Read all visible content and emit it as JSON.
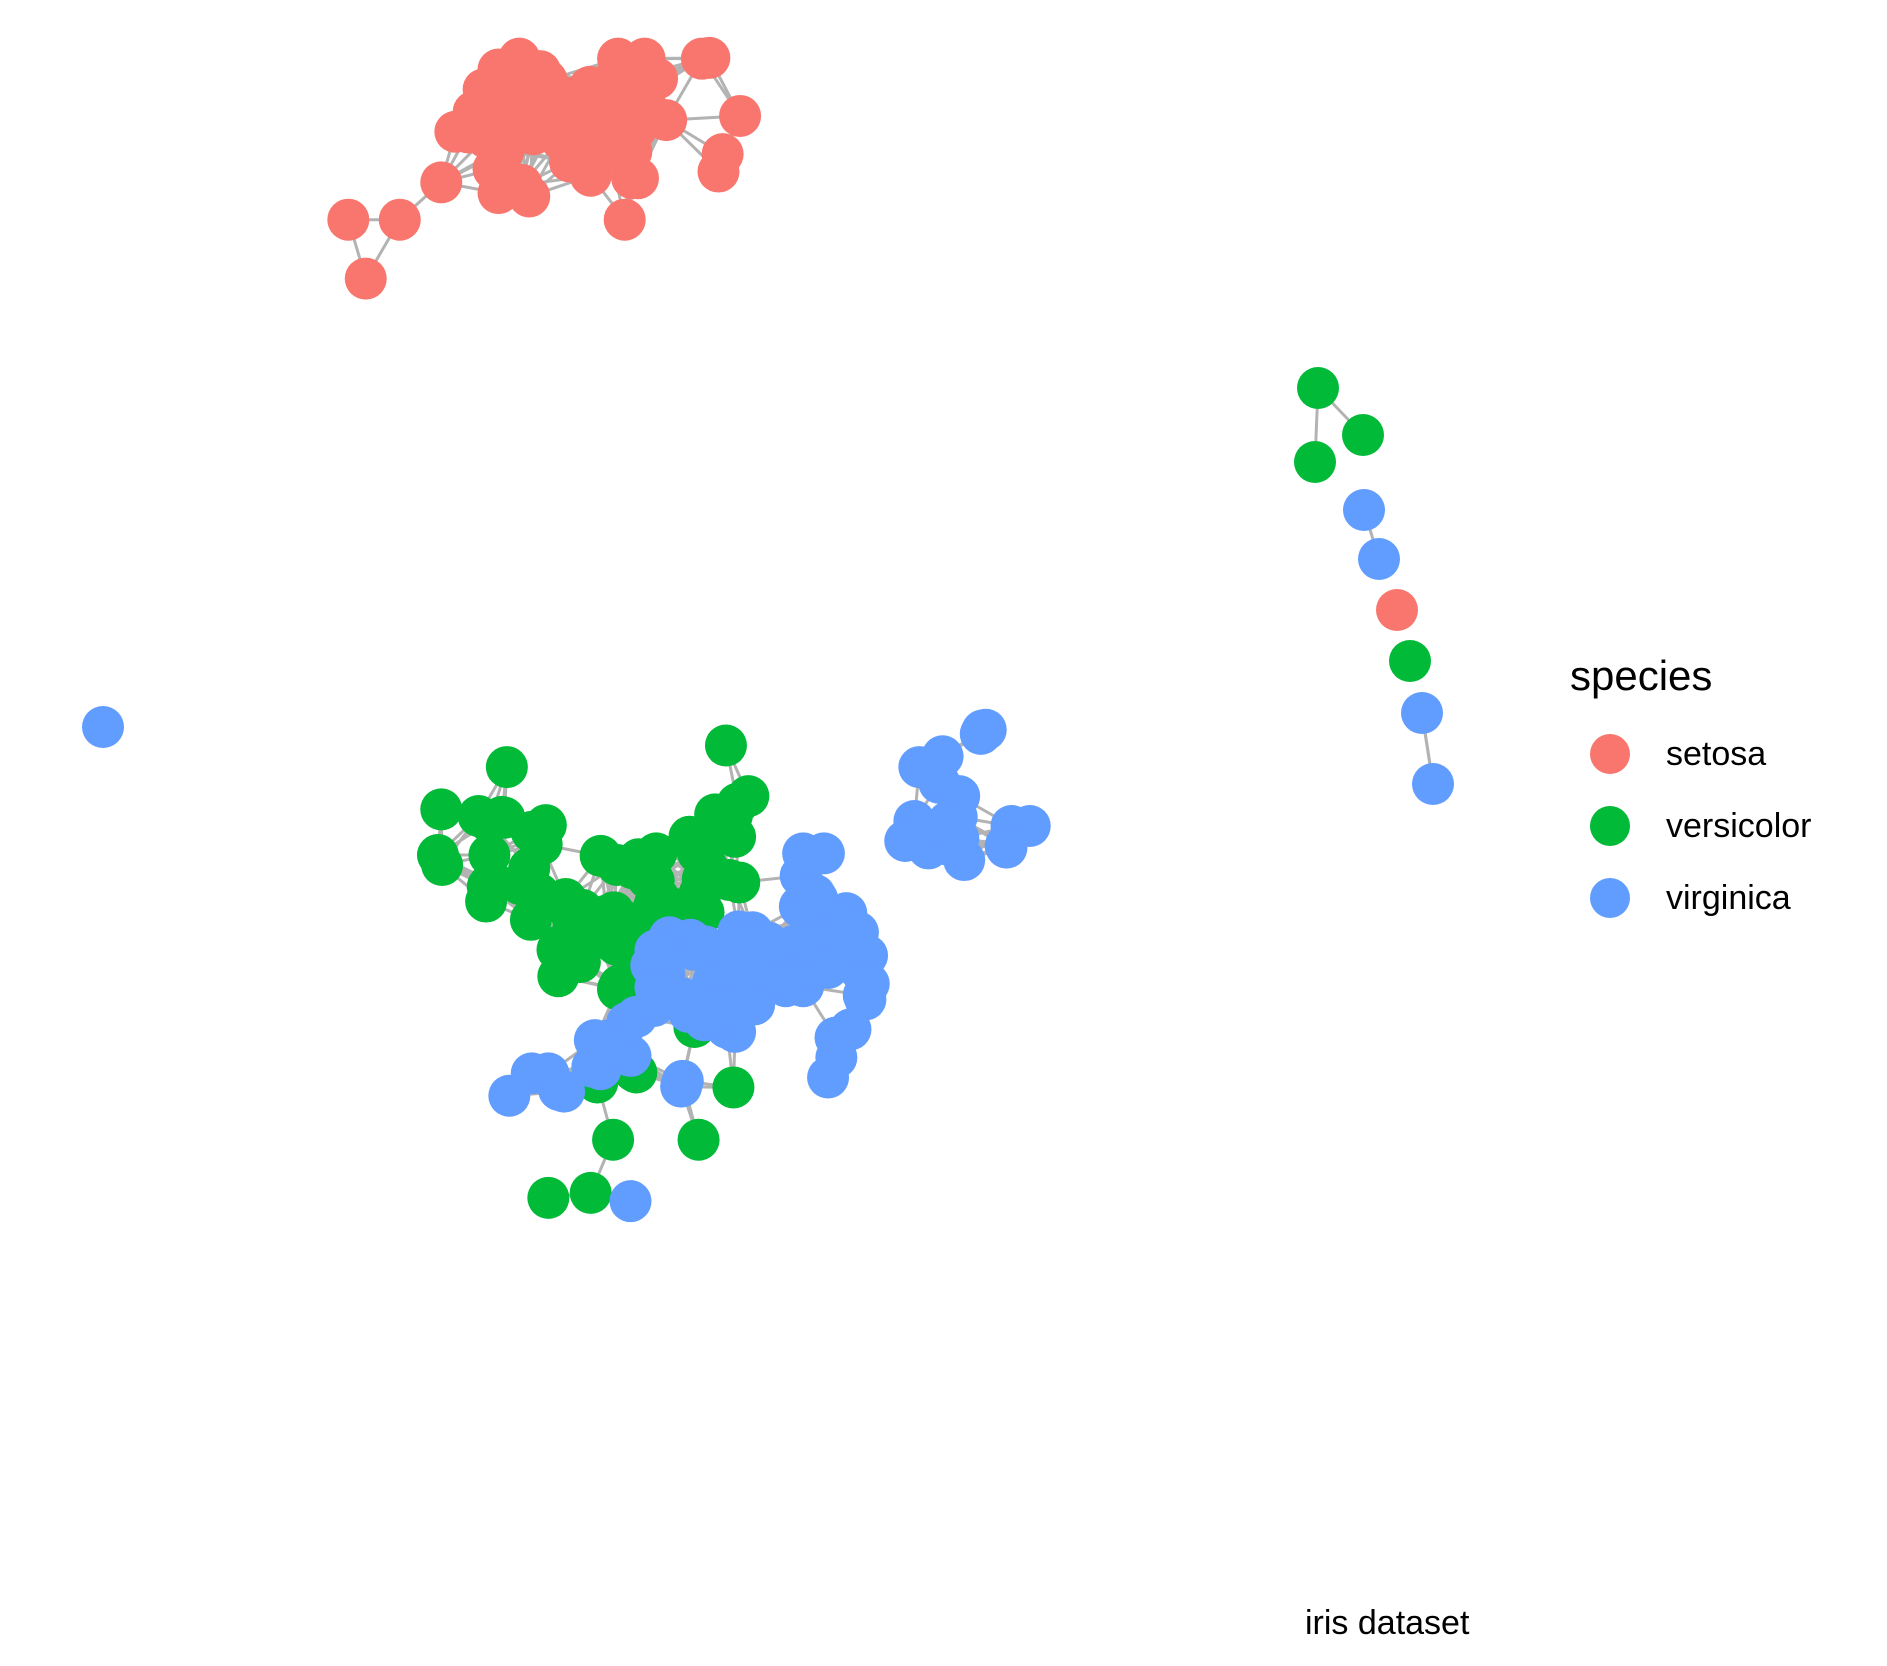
{
  "caption": "iris dataset",
  "legend": {
    "title": "species",
    "items": [
      {
        "label": "setosa",
        "color": "#F8766D"
      },
      {
        "label": "versicolor",
        "color": "#00BA38"
      },
      {
        "label": "virginica",
        "color": "#619CFF"
      }
    ]
  },
  "colors": {
    "edge": "#b3b3b3",
    "background": "#ffffff"
  }
}
